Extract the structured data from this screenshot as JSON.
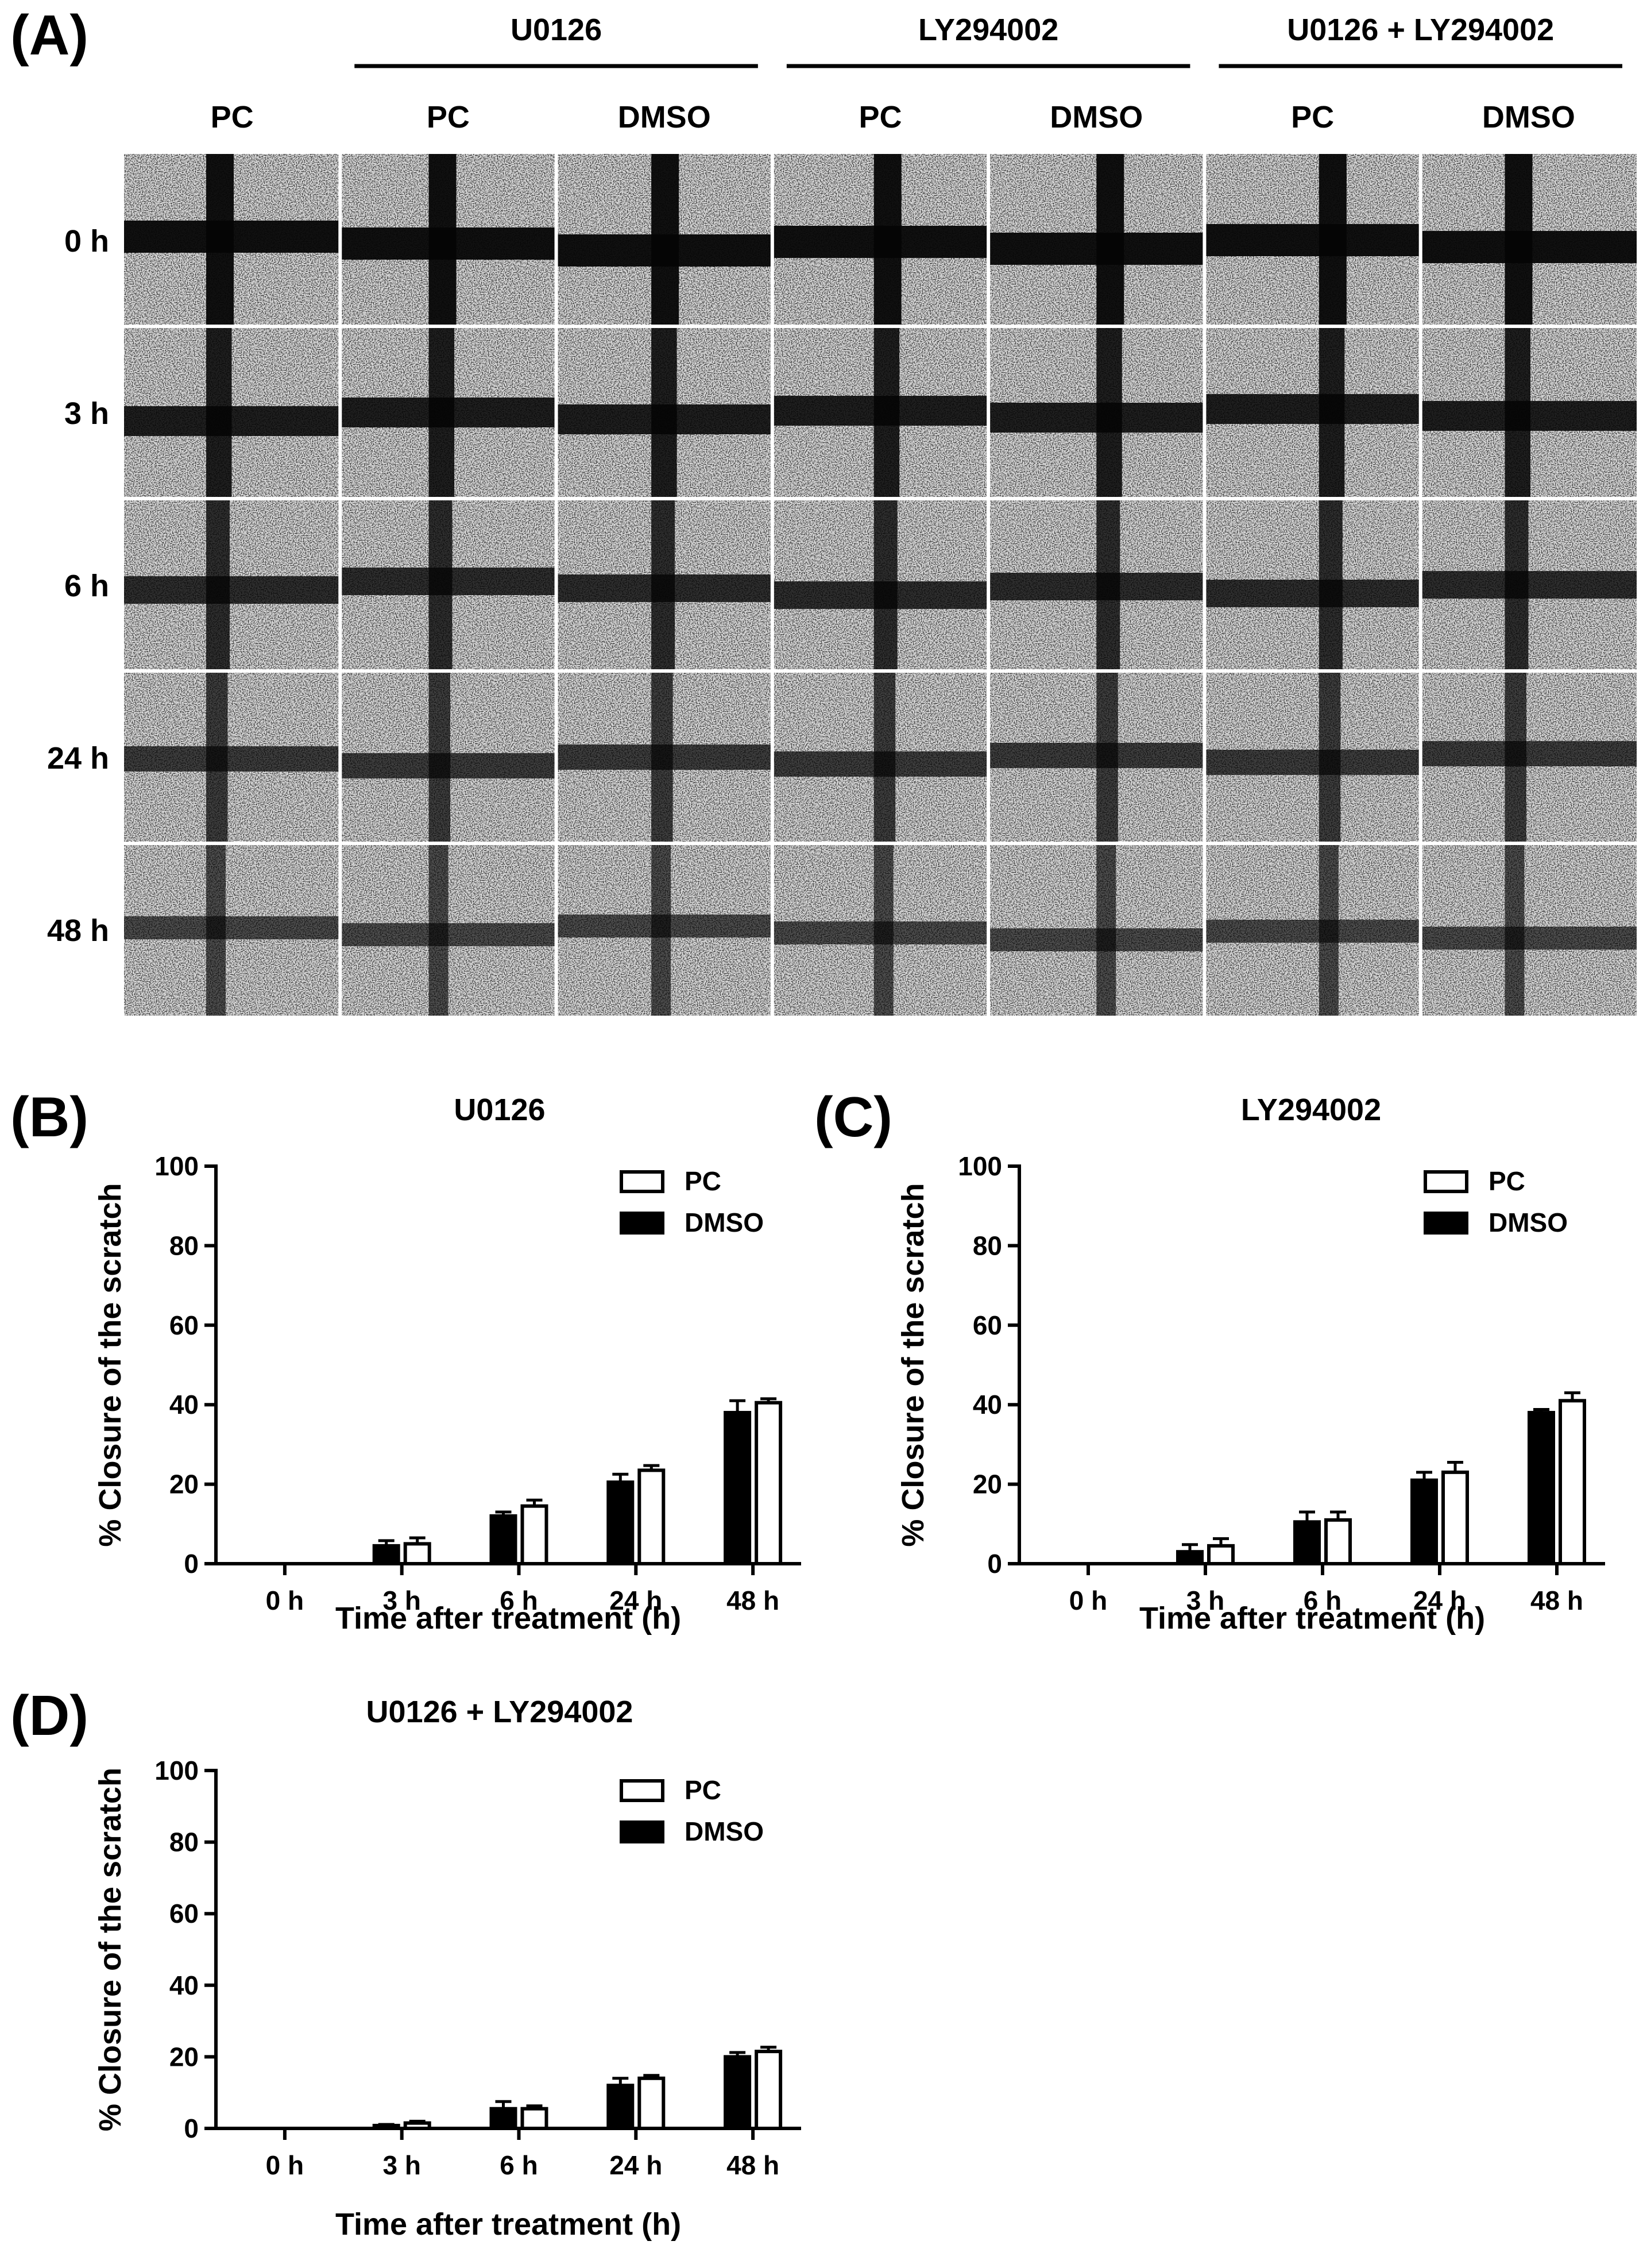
{
  "panelA": {
    "letter": "(A)",
    "groups": [
      "U0126",
      "LY294002",
      "U0126 + LY294002"
    ],
    "columns": [
      "PC",
      "PC",
      "DMSO",
      "PC",
      "DMSO",
      "PC",
      "DMSO"
    ],
    "rows": [
      "0 h",
      "3 h",
      "6 h",
      "24 h",
      "48 h"
    ],
    "colors": {
      "background": "#262626",
      "cells": "#a8a8a8",
      "scratch": "#050505",
      "divider": "#ffffff"
    }
  },
  "chart_data": [
    {
      "type": "bar",
      "letter": "(B)",
      "title": "U0126",
      "xlabel": "Time after treatment (h)",
      "ylabel": "% Closure of the scratch",
      "ylim": [
        0,
        100
      ],
      "yticks": [
        0,
        20,
        40,
        60,
        80,
        100
      ],
      "categories": [
        "0 h",
        "3 h",
        "6 h",
        "24 h",
        "48 h"
      ],
      "legend_position": "top-right",
      "series": [
        {
          "name": "PC",
          "fill": "#ffffff",
          "values": [
            0,
            5,
            14.5,
            23.5,
            40.5
          ],
          "errors": [
            0,
            1.5,
            1.5,
            1.2,
            1.0
          ]
        },
        {
          "name": "DMSO",
          "fill": "#000000",
          "values": [
            0,
            4.5,
            12,
            20.5,
            38
          ],
          "errors": [
            0,
            1.3,
            1.0,
            2.0,
            3.0
          ]
        }
      ]
    },
    {
      "type": "bar",
      "letter": "(C)",
      "title": "LY294002",
      "xlabel": "Time after treatment (h)",
      "ylabel": "% Closure of the scratch",
      "ylim": [
        0,
        100
      ],
      "yticks": [
        0,
        20,
        40,
        60,
        80,
        100
      ],
      "categories": [
        "0 h",
        "3 h",
        "6 h",
        "24 h",
        "48 h"
      ],
      "legend_position": "top-right",
      "series": [
        {
          "name": "PC",
          "fill": "#ffffff",
          "values": [
            0,
            4.5,
            11,
            23,
            41
          ],
          "errors": [
            0,
            1.8,
            2.0,
            2.5,
            2.0
          ]
        },
        {
          "name": "DMSO",
          "fill": "#000000",
          "values": [
            0,
            3,
            10.5,
            21,
            38
          ],
          "errors": [
            0,
            1.8,
            2.5,
            2.0,
            0.8
          ]
        }
      ]
    },
    {
      "type": "bar",
      "letter": "(D)",
      "title": "U0126 + LY294002",
      "xlabel": "Time after treatment (h)",
      "ylabel": "% Closure of the scratch",
      "ylim": [
        0,
        100
      ],
      "yticks": [
        0,
        20,
        40,
        60,
        80,
        100
      ],
      "categories": [
        "0 h",
        "3 h",
        "6 h",
        "24 h",
        "48 h"
      ],
      "legend_position": "top-right",
      "series": [
        {
          "name": "PC",
          "fill": "#ffffff",
          "values": [
            0,
            1.5,
            5.5,
            14,
            21.5
          ],
          "errors": [
            0,
            0.5,
            0.8,
            0.8,
            1.2
          ]
        },
        {
          "name": "DMSO",
          "fill": "#000000",
          "values": [
            0,
            0.8,
            5.5,
            12,
            20
          ],
          "errors": [
            0,
            0.3,
            2.0,
            2.0,
            1.2
          ]
        }
      ]
    }
  ]
}
